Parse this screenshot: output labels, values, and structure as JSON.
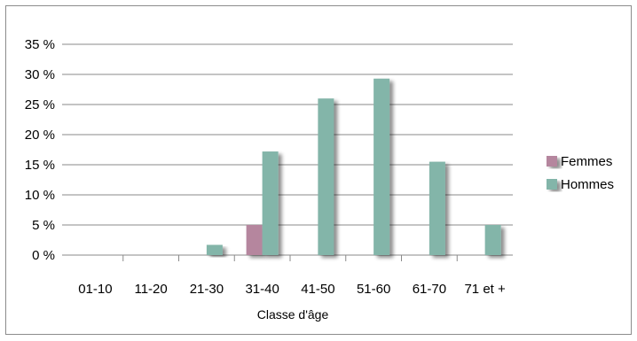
{
  "chart_data": {
    "type": "bar",
    "xlabel": "Classe d'âge",
    "ylabel": "",
    "categories": [
      "01-10",
      "11-20",
      "21-30",
      "31-40",
      "41-50",
      "51-60",
      "61-70",
      "71 et +"
    ],
    "series": [
      {
        "name": "Femmes",
        "color": "#b5869e",
        "values": [
          0,
          0,
          0,
          5,
          0,
          0,
          0,
          0
        ]
      },
      {
        "name": "Hommes",
        "color": "#83b5a9",
        "values": [
          0,
          0,
          1.7,
          17.2,
          26,
          29.3,
          15.5,
          5
        ]
      }
    ],
    "ylim": [
      0,
      35
    ],
    "yticks": [
      0,
      5,
      10,
      15,
      20,
      25,
      30,
      35
    ],
    "ytick_labels": [
      "0 %",
      "5 %",
      "10 %",
      "15 %",
      "20 %",
      "25 %",
      "30 %",
      "35 %"
    ],
    "grid": true,
    "legend_position": "right"
  }
}
